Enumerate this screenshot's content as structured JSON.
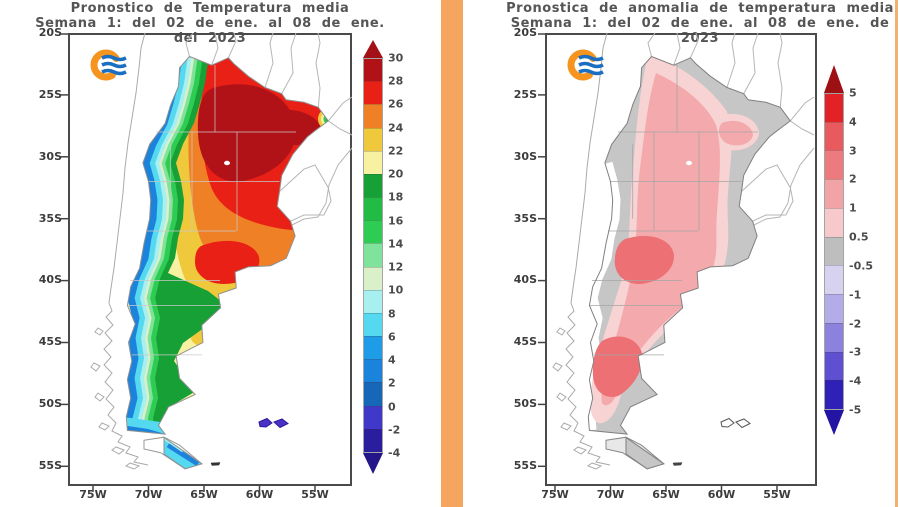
{
  "page": {
    "background": "#ffffff",
    "divider_color": "#F6A55F",
    "edge_line_color": "#F5AF6E"
  },
  "panels": {
    "left": {
      "title_line1": "Pronostico de Temperatura media",
      "title_line2": "Semana 1: del 02 de ene. al 08 de ene. del 2023",
      "logo": "SMN Argentina logo (orange arc with blue waves)",
      "lat_labels": [
        "20S",
        "25S",
        "30S",
        "35S",
        "40S",
        "45S",
        "50S",
        "55S"
      ],
      "lon_labels": [
        "75W",
        "70W",
        "65W",
        "60W",
        "55W"
      ],
      "colorbar": {
        "labels": [
          "30",
          "28",
          "26",
          "24",
          "22",
          "20",
          "18",
          "16",
          "14",
          "12",
          "10",
          "8",
          "6",
          "4",
          "2",
          "0",
          "-2",
          "-4"
        ],
        "top_arrow_color": "#A31116",
        "bottom_arrow_color": "#241689",
        "segment_colors": [
          "#B11218",
          "#E92015",
          "#F08026",
          "#EFC93B",
          "#F8F1A1",
          "#17A035",
          "#22BB44",
          "#2ECC52",
          "#7FE39B",
          "#D9F0C8",
          "#A8EFF0",
          "#55D9F0",
          "#1F9CE8",
          "#1C83DC",
          "#1767B8",
          "#4038C8",
          "#2A1D9E"
        ]
      }
    },
    "right": {
      "title_line1": "Pronostica de anomalia de temperatura media",
      "title_line2": "Semana 1: del 02 de ene. al 08 de ene. de 2023",
      "logo": "SMN Argentina logo (orange arc with blue waves)",
      "lat_labels": [
        "20S",
        "25S",
        "30S",
        "35S",
        "40S",
        "45S",
        "50S",
        "55S"
      ],
      "lon_labels": [
        "75W",
        "70W",
        "65W",
        "60W",
        "55W"
      ],
      "colorbar": {
        "labels": [
          "5",
          "4",
          "3",
          "2",
          "1",
          "0.5",
          "-0.5",
          "-1",
          "-2",
          "-3",
          "-4",
          "-5"
        ],
        "top_arrow_color": "#9E1013",
        "bottom_arrow_color": "#2314A4",
        "segment_colors": [
          "#E32227",
          "#E95A5E",
          "#EC7A7E",
          "#F2A3A5",
          "#F7C9CA",
          "#BEBEBE",
          "#D6D2F0",
          "#B3ACE8",
          "#8C82DE",
          "#5E50D0",
          "#2F20B8"
        ]
      }
    }
  },
  "map_colors": {
    "left": {
      "base_pale_yellow": "#F8F1A1",
      "gold": "#EFC93B",
      "orange": "#F08026",
      "red": "#E92015",
      "dark_red": "#B11218",
      "dark_green": "#17A035",
      "cyan": "#55D9F0",
      "blue": "#1C83DC",
      "malvinas": "#4A30C4"
    },
    "right": {
      "gray": "#C6C6C6",
      "light_pink": "#F8D3D4",
      "pink": "#F4AAAC",
      "dark_pink": "#EC7074"
    }
  }
}
